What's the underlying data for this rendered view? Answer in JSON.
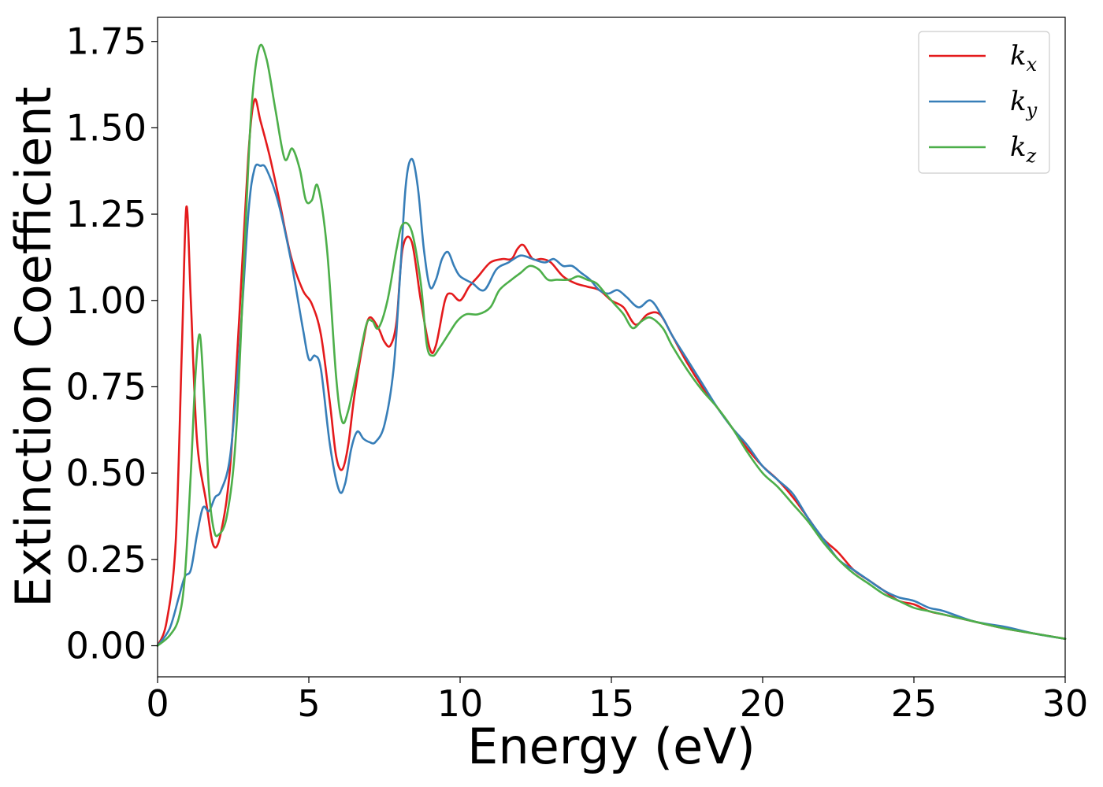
{
  "chart_data": {
    "type": "line",
    "title": "",
    "xlabel": "Energy (eV)",
    "ylabel": "Extinction Coefficient",
    "xlim": [
      0,
      30
    ],
    "ylim": [
      -0.09,
      1.82
    ],
    "xticks": [
      0,
      5,
      10,
      15,
      20,
      25,
      30
    ],
    "xtick_labels": [
      "0",
      "5",
      "10",
      "15",
      "20",
      "25",
      "30"
    ],
    "yticks": [
      0,
      0.25,
      0.5,
      0.75,
      1.0,
      1.25,
      1.5,
      1.75
    ],
    "ytick_labels": [
      "0.00",
      "0.25",
      "0.50",
      "0.75",
      "1.00",
      "1.25",
      "1.50",
      "1.75"
    ],
    "grid": false,
    "legend_position": "top-right",
    "series": [
      {
        "name": "k",
        "subscript": "x",
        "color": "#e41a1c",
        "x": [
          0,
          0.3,
          0.6,
          0.8,
          0.95,
          1.1,
          1.3,
          1.6,
          1.85,
          2.1,
          2.4,
          2.7,
          3.0,
          3.2,
          3.4,
          3.7,
          4.0,
          4.4,
          4.8,
          5.1,
          5.4,
          5.7,
          5.9,
          6.1,
          6.3,
          6.5,
          6.8,
          7.0,
          7.3,
          7.5,
          7.7,
          7.9,
          8.1,
          8.4,
          8.7,
          9.0,
          9.2,
          9.5,
          9.7,
          10.0,
          10.3,
          10.6,
          11.0,
          11.4,
          11.7,
          11.9,
          12.1,
          12.4,
          12.7,
          13.0,
          13.4,
          13.8,
          14.2,
          14.6,
          15.0,
          15.4,
          15.8,
          16.2,
          16.6,
          17.0,
          17.5,
          18.0,
          18.5,
          19.0,
          19.5,
          20.0,
          20.5,
          21.0,
          21.5,
          22.0,
          22.5,
          23.0,
          23.5,
          24.0,
          24.5,
          25.0,
          25.5,
          26.0,
          27.0,
          28.0,
          29.0,
          30.0
        ],
        "values": [
          0.0,
          0.07,
          0.3,
          0.85,
          1.27,
          1.0,
          0.6,
          0.42,
          0.29,
          0.33,
          0.52,
          0.95,
          1.42,
          1.58,
          1.52,
          1.42,
          1.3,
          1.13,
          1.03,
          0.99,
          0.9,
          0.7,
          0.55,
          0.51,
          0.58,
          0.72,
          0.88,
          0.95,
          0.92,
          0.88,
          0.87,
          0.94,
          1.15,
          1.17,
          1.0,
          0.86,
          0.87,
          1.0,
          1.02,
          1.0,
          1.04,
          1.07,
          1.11,
          1.12,
          1.12,
          1.15,
          1.16,
          1.12,
          1.12,
          1.11,
          1.07,
          1.05,
          1.04,
          1.03,
          1.0,
          0.98,
          0.93,
          0.96,
          0.96,
          0.9,
          0.82,
          0.75,
          0.69,
          0.63,
          0.57,
          0.52,
          0.48,
          0.43,
          0.37,
          0.31,
          0.27,
          0.22,
          0.19,
          0.16,
          0.13,
          0.12,
          0.1,
          0.09,
          0.07,
          0.05,
          0.035,
          0.02
        ]
      },
      {
        "name": "k",
        "subscript": "y",
        "color": "#377eb8",
        "x": [
          0,
          0.4,
          0.7,
          0.9,
          1.1,
          1.3,
          1.5,
          1.7,
          1.9,
          2.1,
          2.4,
          2.7,
          3.0,
          3.2,
          3.4,
          3.6,
          4.0,
          4.4,
          4.8,
          5.0,
          5.2,
          5.4,
          5.7,
          6.0,
          6.2,
          6.4,
          6.6,
          6.8,
          7.0,
          7.2,
          7.5,
          7.8,
          8.0,
          8.2,
          8.4,
          8.6,
          8.8,
          9.0,
          9.2,
          9.4,
          9.6,
          9.8,
          10.0,
          10.4,
          10.8,
          11.2,
          11.6,
          12.0,
          12.4,
          12.8,
          13.1,
          13.4,
          13.7,
          14.0,
          14.3,
          14.6,
          14.9,
          15.2,
          15.5,
          15.9,
          16.3,
          16.7,
          17.0,
          17.5,
          18.0,
          18.5,
          19.0,
          19.5,
          20.0,
          20.5,
          21.0,
          21.5,
          22.0,
          22.5,
          23.0,
          23.5,
          24.0,
          24.5,
          25.0,
          25.5,
          26.0,
          27.0,
          28.0,
          29.0,
          30.0
        ],
        "values": [
          0.0,
          0.05,
          0.14,
          0.2,
          0.22,
          0.32,
          0.4,
          0.39,
          0.43,
          0.45,
          0.55,
          0.85,
          1.25,
          1.38,
          1.39,
          1.38,
          1.28,
          1.12,
          0.92,
          0.83,
          0.84,
          0.8,
          0.58,
          0.45,
          0.47,
          0.57,
          0.62,
          0.6,
          0.59,
          0.59,
          0.64,
          0.8,
          1.05,
          1.33,
          1.41,
          1.33,
          1.15,
          1.04,
          1.06,
          1.12,
          1.14,
          1.1,
          1.07,
          1.05,
          1.03,
          1.09,
          1.11,
          1.13,
          1.12,
          1.11,
          1.12,
          1.1,
          1.1,
          1.08,
          1.06,
          1.03,
          1.02,
          1.03,
          1.01,
          0.98,
          1.0,
          0.95,
          0.9,
          0.83,
          0.76,
          0.69,
          0.63,
          0.58,
          0.52,
          0.48,
          0.44,
          0.37,
          0.31,
          0.25,
          0.22,
          0.19,
          0.16,
          0.14,
          0.13,
          0.11,
          0.1,
          0.07,
          0.055,
          0.035,
          0.02
        ]
      },
      {
        "name": "k",
        "subscript": "z",
        "color": "#4daf4a",
        "x": [
          0,
          0.4,
          0.7,
          0.9,
          1.1,
          1.25,
          1.4,
          1.55,
          1.7,
          1.85,
          2.0,
          2.3,
          2.6,
          2.9,
          3.1,
          3.35,
          3.6,
          3.9,
          4.2,
          4.45,
          4.7,
          4.9,
          5.1,
          5.3,
          5.6,
          5.9,
          6.1,
          6.3,
          6.6,
          6.9,
          7.1,
          7.3,
          7.6,
          7.9,
          8.1,
          8.4,
          8.7,
          8.9,
          9.1,
          9.3,
          9.6,
          9.9,
          10.2,
          10.6,
          11.0,
          11.3,
          11.7,
          12.0,
          12.3,
          12.6,
          12.9,
          13.2,
          13.6,
          13.9,
          14.2,
          14.5,
          14.8,
          15.1,
          15.4,
          15.7,
          16.0,
          16.3,
          16.7,
          17.0,
          17.5,
          18.0,
          18.5,
          19.0,
          19.5,
          20.0,
          20.5,
          21.0,
          21.5,
          22.0,
          22.5,
          23.0,
          23.5,
          24.0,
          24.5,
          25.0,
          25.5,
          26.0,
          27.0,
          28.0,
          29.0,
          30.0
        ],
        "values": [
          0.0,
          0.03,
          0.08,
          0.2,
          0.5,
          0.78,
          0.9,
          0.7,
          0.45,
          0.34,
          0.32,
          0.38,
          0.62,
          1.2,
          1.55,
          1.73,
          1.7,
          1.55,
          1.41,
          1.44,
          1.38,
          1.29,
          1.29,
          1.33,
          1.15,
          0.78,
          0.65,
          0.68,
          0.8,
          0.93,
          0.94,
          0.92,
          1.0,
          1.15,
          1.22,
          1.2,
          1.05,
          0.87,
          0.84,
          0.86,
          0.9,
          0.94,
          0.96,
          0.96,
          0.98,
          1.03,
          1.06,
          1.08,
          1.1,
          1.09,
          1.06,
          1.06,
          1.06,
          1.07,
          1.06,
          1.05,
          1.02,
          0.99,
          0.96,
          0.92,
          0.94,
          0.95,
          0.92,
          0.87,
          0.8,
          0.74,
          0.69,
          0.63,
          0.56,
          0.5,
          0.46,
          0.41,
          0.36,
          0.3,
          0.25,
          0.21,
          0.18,
          0.15,
          0.13,
          0.11,
          0.1,
          0.09,
          0.07,
          0.05,
          0.035,
          0.02
        ]
      }
    ]
  }
}
